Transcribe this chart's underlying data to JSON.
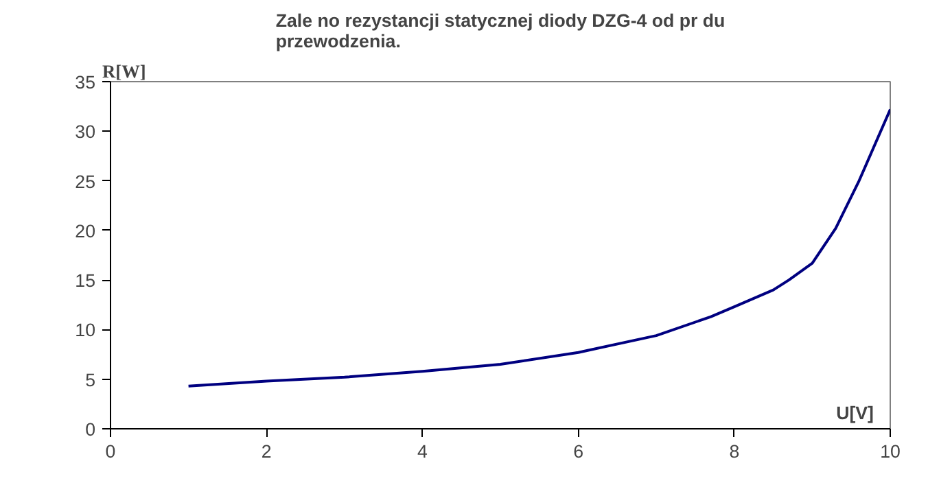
{
  "chart_data": {
    "type": "line",
    "title": "Zale no rezystancji statycznej diody DZG-4 od pr du\nprzewodzenia.",
    "xlabel": "U[V]",
    "ylabel": "R[W]",
    "x": [
      1,
      2,
      3,
      4,
      5,
      6,
      7,
      7.7,
      8,
      8.5,
      8.7,
      9,
      9.3,
      9.6,
      10
    ],
    "series": [
      {
        "color": "#000080",
        "values": [
          4.3,
          4.8,
          5.2,
          5.8,
          6.5,
          7.7,
          9.4,
          11.3,
          12.3,
          14,
          15,
          16.7,
          20.2,
          25,
          32.2
        ]
      }
    ],
    "xlim": [
      0,
      10
    ],
    "xticks": [
      0,
      2,
      4,
      6,
      8,
      10
    ],
    "ylim": [
      0,
      35
    ],
    "yticks": [
      0,
      5,
      10,
      15,
      20,
      25,
      30,
      35
    ],
    "grid": false,
    "marker": "none",
    "line_style": "solid"
  }
}
